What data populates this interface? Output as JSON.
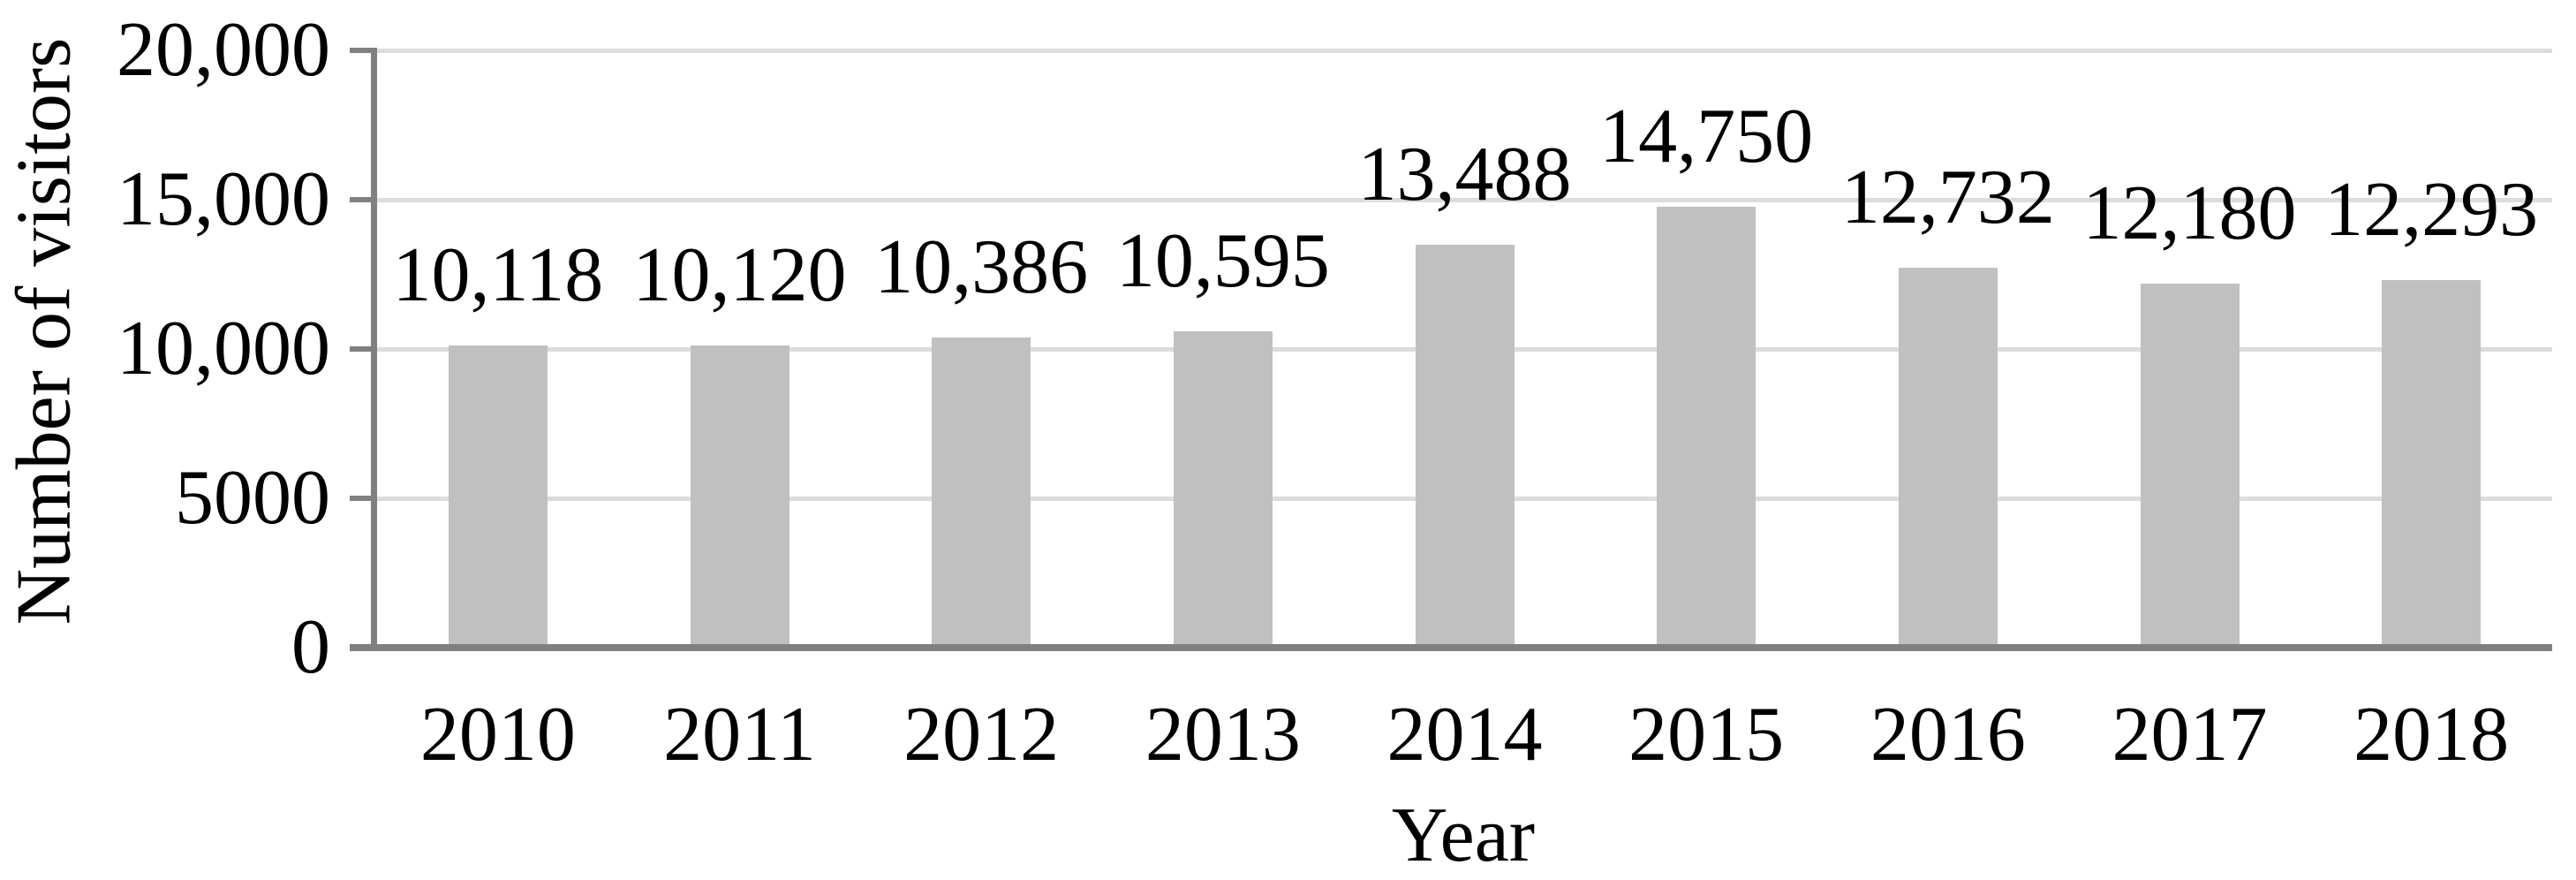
{
  "chart_data": {
    "type": "bar",
    "title": "",
    "xlabel": "Year",
    "ylabel": "Number of visitors",
    "categories": [
      "2010",
      "2011",
      "2012",
      "2013",
      "2014",
      "2015",
      "2016",
      "2017",
      "2018"
    ],
    "values": [
      10118,
      10120,
      10386,
      10595,
      13488,
      14750,
      12732,
      12180,
      12293
    ],
    "value_labels": [
      "10,118",
      "10,120",
      "10,386",
      "10,595",
      "13,488",
      "14,750",
      "12,732",
      "12,180",
      "12,293"
    ],
    "ylim": [
      0,
      20000
    ],
    "yticks": {
      "values": [
        0,
        5000,
        10000,
        15000,
        20000
      ],
      "labels": [
        "0",
        "5000",
        "10,000",
        "15,000",
        "20,000"
      ]
    },
    "grid": "horizontal",
    "legend": "none",
    "colors": {
      "bar_fill": "#c0c0c0",
      "gridline": "#dcdcdc",
      "axis": "#808080",
      "text": "#000000",
      "background": "#ffffff"
    }
  }
}
